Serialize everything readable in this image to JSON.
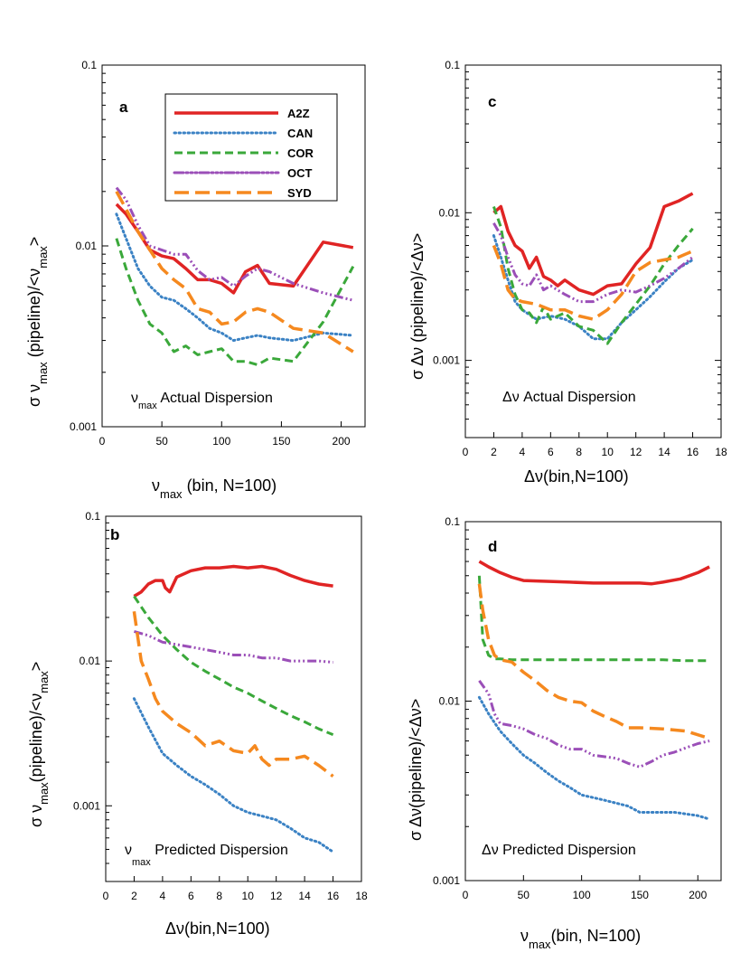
{
  "colors": {
    "A2Z": "#e02424",
    "CAN": "#3b82c4",
    "COR": "#3aa83a",
    "OCT": "#9b4fb8",
    "SYD": "#f5891f",
    "axis": "#000000"
  },
  "legend": {
    "entries": [
      "A2Z",
      "CAN",
      "COR",
      "OCT",
      "SYD"
    ]
  },
  "chart_data": [
    {
      "id": "a",
      "panel_label": "a",
      "type": "line",
      "yscale": "log",
      "xlim": [
        0,
        220
      ],
      "ylim": [
        0.001,
        0.1
      ],
      "xticks": [
        "0",
        "50",
        "100",
        "150",
        "200"
      ],
      "yticks": [
        "0.001",
        "0.01",
        "0.1"
      ],
      "ylabel": {
        "pre": "σ ν",
        "sub": "max",
        "mid": " (pipeline)/<ν",
        "sub2": "max",
        "post": ">"
      },
      "xlabel": {
        "pre": "ν",
        "sub": "max",
        "post": " (bin, N=100)"
      },
      "annotation": {
        "pre": "ν",
        "sub": "max",
        "post": " Actual Dispersion"
      },
      "series": [
        {
          "name": "A2Z",
          "x": [
            12,
            20,
            30,
            40,
            50,
            60,
            70,
            80,
            90,
            100,
            110,
            120,
            130,
            140,
            160,
            185,
            210
          ],
          "y": [
            0.017,
            0.015,
            0.012,
            0.0095,
            0.0088,
            0.0085,
            0.0075,
            0.0065,
            0.0065,
            0.0062,
            0.0055,
            0.0072,
            0.0078,
            0.0062,
            0.006,
            0.0105,
            0.0098
          ]
        },
        {
          "name": "CAN",
          "x": [
            12,
            20,
            30,
            40,
            50,
            60,
            70,
            80,
            90,
            100,
            110,
            120,
            130,
            140,
            160,
            185,
            210
          ],
          "y": [
            0.015,
            0.011,
            0.0075,
            0.006,
            0.0052,
            0.005,
            0.0045,
            0.004,
            0.0035,
            0.0033,
            0.003,
            0.0031,
            0.0032,
            0.0031,
            0.003,
            0.0033,
            0.0032
          ]
        },
        {
          "name": "COR",
          "x": [
            12,
            20,
            30,
            40,
            50,
            60,
            70,
            80,
            90,
            100,
            110,
            120,
            130,
            140,
            160,
            185,
            210
          ],
          "y": [
            0.011,
            0.0075,
            0.005,
            0.0037,
            0.0033,
            0.0026,
            0.0028,
            0.0025,
            0.0026,
            0.0027,
            0.0023,
            0.0023,
            0.0022,
            0.0024,
            0.0023,
            0.0038,
            0.0077
          ]
        },
        {
          "name": "OCT",
          "x": [
            12,
            20,
            30,
            40,
            50,
            60,
            70,
            80,
            90,
            100,
            110,
            120,
            130,
            140,
            160,
            185,
            210
          ],
          "y": [
            0.021,
            0.018,
            0.013,
            0.01,
            0.0095,
            0.009,
            0.009,
            0.0073,
            0.0065,
            0.0067,
            0.006,
            0.0068,
            0.0075,
            0.0072,
            0.0062,
            0.0055,
            0.005
          ]
        },
        {
          "name": "SYD",
          "x": [
            12,
            20,
            30,
            40,
            50,
            60,
            70,
            80,
            90,
            100,
            110,
            120,
            130,
            140,
            160,
            185,
            210
          ],
          "y": [
            0.02,
            0.016,
            0.012,
            0.0095,
            0.0075,
            0.0065,
            0.0058,
            0.0045,
            0.0043,
            0.0037,
            0.0038,
            0.0043,
            0.0045,
            0.0043,
            0.0035,
            0.0033,
            0.0026
          ]
        }
      ]
    },
    {
      "id": "b",
      "panel_label": "b",
      "type": "line",
      "yscale": "log",
      "xlim": [
        0,
        18
      ],
      "ylim": [
        0.0003,
        0.1
      ],
      "xticks": [
        "0",
        "2",
        "4",
        "6",
        "8",
        "10",
        "12",
        "14",
        "16",
        "18"
      ],
      "yticks": [
        "0.001",
        "0.01",
        "0.1"
      ],
      "ylabel": {
        "pre": "σ ν",
        "sub": "max",
        "mid": "(pipeline)/<ν",
        "sub2": "max",
        "post": ">"
      },
      "xlabel": {
        "pre": "Δν",
        "sub": "",
        "post": "(bin,N=100)"
      },
      "annotation": {
        "pre": "ν",
        "sub": "max",
        "post": "  Predicted Dispersion"
      },
      "series": [
        {
          "name": "A2Z",
          "x": [
            2,
            2.5,
            3,
            3.5,
            4,
            4.2,
            4.5,
            5,
            6,
            7,
            8,
            9,
            10,
            11,
            12,
            13,
            14,
            15,
            16
          ],
          "y": [
            0.028,
            0.03,
            0.034,
            0.036,
            0.036,
            0.032,
            0.03,
            0.038,
            0.042,
            0.044,
            0.044,
            0.045,
            0.044,
            0.045,
            0.043,
            0.039,
            0.036,
            0.034,
            0.033
          ]
        },
        {
          "name": "CAN",
          "x": [
            2,
            3,
            4,
            5,
            6,
            7,
            8,
            9,
            10,
            11,
            12,
            13,
            14,
            15,
            16
          ],
          "y": [
            0.0055,
            0.0035,
            0.0023,
            0.0019,
            0.0016,
            0.0014,
            0.0012,
            0.001,
            0.0009,
            0.00085,
            0.0008,
            0.0007,
            0.0006,
            0.00056,
            0.00048
          ]
        },
        {
          "name": "COR",
          "x": [
            2,
            3,
            4,
            5,
            6,
            7,
            8,
            9,
            10,
            11,
            12,
            13,
            14,
            15,
            16
          ],
          "y": [
            0.028,
            0.02,
            0.015,
            0.012,
            0.0098,
            0.0085,
            0.0075,
            0.0066,
            0.006,
            0.0053,
            0.0047,
            0.0042,
            0.0038,
            0.0034,
            0.0031
          ]
        },
        {
          "name": "OCT",
          "x": [
            2,
            3,
            4,
            5,
            6,
            7,
            8,
            9,
            10,
            11,
            12,
            13,
            14,
            15,
            16
          ],
          "y": [
            0.016,
            0.015,
            0.0135,
            0.013,
            0.0125,
            0.012,
            0.0115,
            0.011,
            0.011,
            0.0105,
            0.0105,
            0.01,
            0.01,
            0.01,
            0.0098
          ]
        },
        {
          "name": "SYD",
          "x": [
            2,
            2.5,
            3,
            3.5,
            4,
            5,
            6,
            7,
            8,
            9,
            10,
            10.5,
            11,
            11.5,
            12,
            13,
            14,
            15,
            16
          ],
          "y": [
            0.022,
            0.01,
            0.0075,
            0.0055,
            0.0045,
            0.0037,
            0.0032,
            0.0026,
            0.0028,
            0.0024,
            0.0023,
            0.0026,
            0.0021,
            0.0019,
            0.0021,
            0.0021,
            0.0022,
            0.0019,
            0.0016
          ]
        }
      ]
    },
    {
      "id": "c",
      "panel_label": "c",
      "type": "line",
      "yscale": "log",
      "xlim": [
        0,
        18
      ],
      "ylim": [
        0.0003,
        0.1
      ],
      "xticks": [
        "0",
        "2",
        "4",
        "6",
        "8",
        "10",
        "12",
        "14",
        "16",
        "18"
      ],
      "yticks": [
        "0.001",
        "0.01",
        "0.1"
      ],
      "ylabel": {
        "pre": "σ Δν (pipeline)/<Δν>",
        "sub": "",
        "mid": "",
        "sub2": "",
        "post": ""
      },
      "xlabel": {
        "pre": "Δν(bin,N=100)",
        "sub": "",
        "post": ""
      },
      "annotation": {
        "pre": "Δν Actual Dispersion",
        "sub": "",
        "post": ""
      },
      "series": [
        {
          "name": "A2Z",
          "x": [
            2,
            2.5,
            3,
            3.5,
            4,
            4.5,
            5,
            5.5,
            6,
            6.5,
            7,
            8,
            9,
            10,
            11,
            12,
            13,
            14,
            15,
            16
          ],
          "y": [
            0.01,
            0.011,
            0.0075,
            0.006,
            0.0055,
            0.0042,
            0.005,
            0.0037,
            0.0035,
            0.0032,
            0.0035,
            0.003,
            0.0028,
            0.0032,
            0.0033,
            0.0045,
            0.0058,
            0.011,
            0.012,
            0.0135
          ]
        },
        {
          "name": "CAN",
          "x": [
            2,
            2.5,
            3,
            3.5,
            4,
            5,
            6,
            7,
            8,
            9,
            10,
            11,
            12,
            13,
            14,
            15,
            16
          ],
          "y": [
            0.007,
            0.005,
            0.0035,
            0.0025,
            0.0022,
            0.0019,
            0.002,
            0.0019,
            0.0017,
            0.0014,
            0.0014,
            0.0018,
            0.0022,
            0.0027,
            0.0034,
            0.0042,
            0.0048
          ]
        },
        {
          "name": "COR",
          "x": [
            2,
            2.5,
            3,
            3.5,
            4,
            4.5,
            5,
            5.5,
            6,
            7,
            8,
            9,
            10,
            11,
            12,
            13,
            14,
            15,
            16
          ],
          "y": [
            0.011,
            0.008,
            0.0042,
            0.0028,
            0.0022,
            0.0021,
            0.0018,
            0.0023,
            0.0019,
            0.0021,
            0.0017,
            0.0016,
            0.0013,
            0.0018,
            0.0024,
            0.0032,
            0.0045,
            0.006,
            0.0078
          ]
        },
        {
          "name": "OCT",
          "x": [
            2,
            2.5,
            3,
            3.5,
            4,
            4.5,
            5,
            5.5,
            6,
            7,
            8,
            9,
            10,
            11,
            12,
            13,
            14,
            15,
            16
          ],
          "y": [
            0.0085,
            0.007,
            0.005,
            0.0038,
            0.0033,
            0.0032,
            0.0038,
            0.003,
            0.0032,
            0.0028,
            0.0025,
            0.0025,
            0.0028,
            0.003,
            0.0029,
            0.0032,
            0.0036,
            0.0042,
            0.005
          ]
        },
        {
          "name": "SYD",
          "x": [
            2,
            2.5,
            3,
            3.5,
            4,
            5,
            6,
            7,
            8,
            9,
            10,
            11,
            12,
            13,
            14,
            15,
            16
          ],
          "y": [
            0.006,
            0.0045,
            0.003,
            0.0026,
            0.0025,
            0.0024,
            0.0022,
            0.0022,
            0.002,
            0.0019,
            0.0022,
            0.0028,
            0.004,
            0.0046,
            0.0048,
            0.005,
            0.0055
          ]
        }
      ]
    },
    {
      "id": "d",
      "panel_label": "d",
      "type": "line",
      "yscale": "log",
      "xlim": [
        0,
        220
      ],
      "ylim": [
        0.001,
        0.1
      ],
      "xticks": [
        "0",
        "50",
        "100",
        "150",
        "200"
      ],
      "yticks": [
        "0.001",
        "0.01",
        "0.1"
      ],
      "ylabel": {
        "pre": "σ Δν(pipeline)/<Δν>",
        "sub": "",
        "mid": "",
        "sub2": "",
        "post": ""
      },
      "xlabel": {
        "pre": "ν",
        "sub": "max",
        "post": "(bin, N=100)"
      },
      "annotation": {
        "pre": "Δν Predicted Dispersion",
        "sub": "",
        "post": ""
      },
      "series": [
        {
          "name": "A2Z",
          "x": [
            12,
            20,
            30,
            40,
            50,
            70,
            90,
            110,
            130,
            150,
            160,
            170,
            185,
            200,
            210
          ],
          "y": [
            0.06,
            0.056,
            0.052,
            0.049,
            0.047,
            0.0465,
            0.046,
            0.0455,
            0.0455,
            0.0455,
            0.045,
            0.046,
            0.048,
            0.052,
            0.056
          ]
        },
        {
          "name": "CAN",
          "x": [
            12,
            20,
            30,
            40,
            50,
            60,
            70,
            80,
            90,
            100,
            110,
            120,
            130,
            140,
            150,
            160,
            180,
            200,
            210
          ],
          "y": [
            0.0105,
            0.0085,
            0.0068,
            0.0058,
            0.005,
            0.0045,
            0.004,
            0.0036,
            0.0033,
            0.003,
            0.0029,
            0.0028,
            0.0027,
            0.0026,
            0.0024,
            0.0024,
            0.0024,
            0.0023,
            0.0022
          ]
        },
        {
          "name": "COR",
          "x": [
            12,
            15,
            20,
            25,
            30,
            40,
            50,
            70,
            90,
            110,
            130,
            150,
            170,
            190,
            210
          ],
          "y": [
            0.05,
            0.022,
            0.018,
            0.0172,
            0.0172,
            0.017,
            0.017,
            0.017,
            0.017,
            0.017,
            0.017,
            0.017,
            0.017,
            0.0168,
            0.0168
          ]
        },
        {
          "name": "OCT",
          "x": [
            12,
            20,
            25,
            30,
            40,
            50,
            60,
            70,
            80,
            90,
            100,
            110,
            120,
            130,
            140,
            150,
            160,
            170,
            180,
            190,
            200,
            210
          ],
          "y": [
            0.013,
            0.011,
            0.0085,
            0.0075,
            0.0073,
            0.007,
            0.0065,
            0.0062,
            0.0057,
            0.0054,
            0.0054,
            0.005,
            0.0049,
            0.0048,
            0.0045,
            0.0043,
            0.0046,
            0.005,
            0.0052,
            0.0055,
            0.0058,
            0.006
          ]
        },
        {
          "name": "SYD",
          "x": [
            12,
            15,
            20,
            25,
            30,
            40,
            50,
            60,
            70,
            80,
            90,
            100,
            110,
            120,
            130,
            140,
            150,
            170,
            190,
            210
          ],
          "y": [
            0.045,
            0.032,
            0.022,
            0.018,
            0.017,
            0.0165,
            0.0145,
            0.013,
            0.0115,
            0.0105,
            0.01,
            0.0098,
            0.0088,
            0.0082,
            0.0077,
            0.0071,
            0.0071,
            0.007,
            0.0068,
            0.0062
          ]
        }
      ]
    }
  ]
}
